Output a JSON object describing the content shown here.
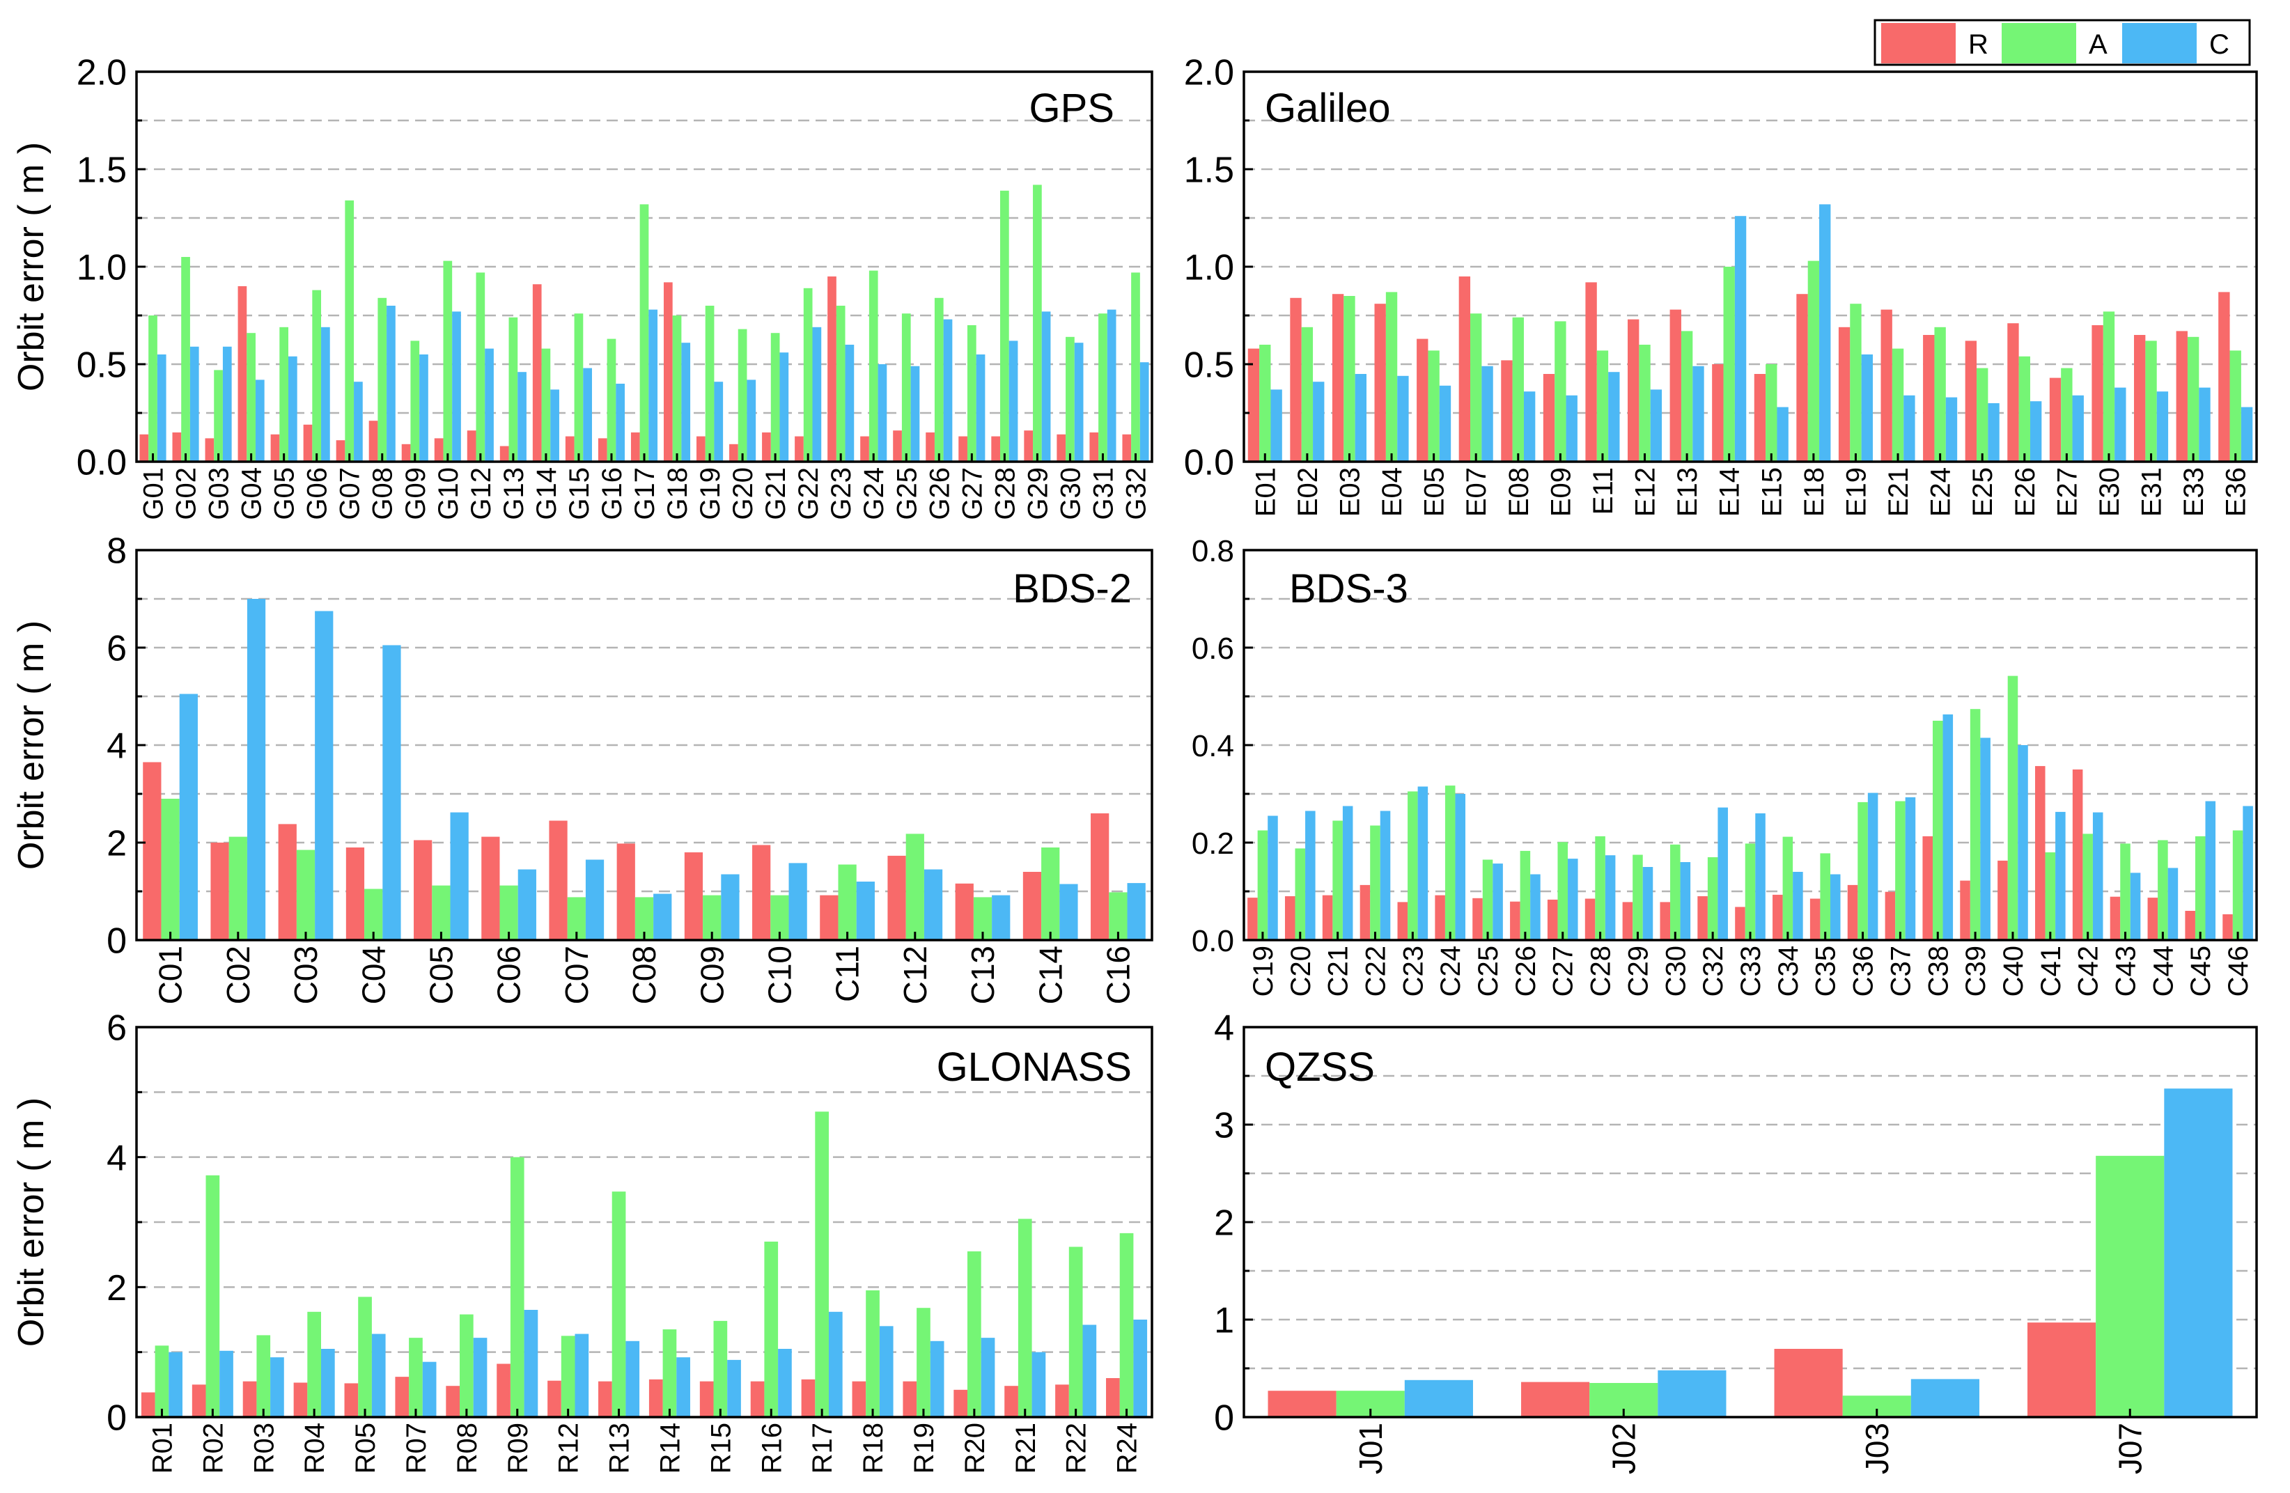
{
  "figure": {
    "ylabel": "Orbit error ( m )",
    "legend": {
      "position": "top-right",
      "entries": [
        "R",
        "A",
        "C"
      ]
    },
    "colors": {
      "R": "#F86A6A",
      "A": "#75F575",
      "C": "#4CB8F5"
    }
  },
  "chart_data": [
    {
      "type": "bar",
      "title": "GPS",
      "ylabel": "Orbit error ( m )",
      "ylim": [
        0,
        2.0
      ],
      "yticks": [
        "0.0",
        "0.5",
        "1.0",
        "1.5",
        "2.0"
      ],
      "grid": true,
      "categories": [
        "G01",
        "G02",
        "G03",
        "G04",
        "G05",
        "G06",
        "G07",
        "G08",
        "G09",
        "G10",
        "G12",
        "G13",
        "G14",
        "G15",
        "G16",
        "G17",
        "G18",
        "G19",
        "G20",
        "G21",
        "G22",
        "G23",
        "G24",
        "G25",
        "G26",
        "G27",
        "G28",
        "G29",
        "G30",
        "G31",
        "G32"
      ],
      "series": [
        {
          "name": "R",
          "values": [
            0.14,
            0.15,
            0.12,
            0.9,
            0.14,
            0.19,
            0.11,
            0.21,
            0.09,
            0.12,
            0.16,
            0.08,
            0.91,
            0.13,
            0.12,
            0.15,
            0.92,
            0.13,
            0.09,
            0.15,
            0.13,
            0.95,
            0.13,
            0.16,
            0.15,
            0.13,
            0.13,
            0.16,
            0.14,
            0.15,
            0.14
          ]
        },
        {
          "name": "A",
          "values": [
            0.75,
            1.05,
            0.47,
            0.66,
            0.69,
            0.88,
            1.34,
            0.84,
            0.62,
            1.03,
            0.97,
            0.74,
            0.58,
            0.76,
            0.63,
            1.32,
            0.75,
            0.8,
            0.68,
            0.66,
            0.89,
            0.8,
            0.98,
            0.76,
            0.84,
            0.7,
            1.39,
            1.42,
            0.64,
            0.76,
            0.97
          ]
        },
        {
          "name": "C",
          "values": [
            0.55,
            0.59,
            0.59,
            0.42,
            0.54,
            0.69,
            0.41,
            0.8,
            0.55,
            0.77,
            0.58,
            0.46,
            0.37,
            0.48,
            0.4,
            0.78,
            0.61,
            0.41,
            0.42,
            0.56,
            0.69,
            0.6,
            0.5,
            0.49,
            0.73,
            0.55,
            0.62,
            0.77,
            0.61,
            0.78,
            0.51
          ]
        }
      ]
    },
    {
      "type": "bar",
      "title": "Galileo",
      "ylabel": "",
      "ylim": [
        0,
        2.0
      ],
      "yticks": [
        "0.0",
        "0.5",
        "1.0",
        "1.5",
        "2.0"
      ],
      "grid": true,
      "categories": [
        "E01",
        "E02",
        "E03",
        "E04",
        "E05",
        "E07",
        "E08",
        "E09",
        "E11",
        "E12",
        "E13",
        "E14",
        "E15",
        "E18",
        "E19",
        "E21",
        "E24",
        "E25",
        "E26",
        "E27",
        "E30",
        "E31",
        "E33",
        "E36"
      ],
      "series": [
        {
          "name": "R",
          "values": [
            0.58,
            0.84,
            0.86,
            0.81,
            0.63,
            0.95,
            0.52,
            0.45,
            0.92,
            0.73,
            0.78,
            0.5,
            0.45,
            0.86,
            0.69,
            0.78,
            0.65,
            0.62,
            0.71,
            0.43,
            0.7,
            0.65,
            0.67,
            0.87
          ]
        },
        {
          "name": "A",
          "values": [
            0.6,
            0.69,
            0.85,
            0.87,
            0.57,
            0.76,
            0.74,
            0.72,
            0.57,
            0.6,
            0.67,
            1.0,
            0.5,
            1.03,
            0.81,
            0.58,
            0.69,
            0.48,
            0.54,
            0.48,
            0.77,
            0.62,
            0.64,
            0.57
          ]
        },
        {
          "name": "C",
          "values": [
            0.37,
            0.41,
            0.45,
            0.44,
            0.39,
            0.49,
            0.36,
            0.34,
            0.46,
            0.37,
            0.49,
            1.26,
            0.28,
            1.32,
            0.55,
            0.34,
            0.33,
            0.3,
            0.31,
            0.34,
            0.38,
            0.36,
            0.38,
            0.28
          ]
        }
      ]
    },
    {
      "type": "bar",
      "title": "BDS-2",
      "ylabel": "Orbit error ( m )",
      "ylim": [
        0,
        8
      ],
      "yticks": [
        "0",
        "2",
        "4",
        "6",
        "8"
      ],
      "grid": true,
      "categories": [
        "C01",
        "C02",
        "C03",
        "C04",
        "C05",
        "C06",
        "C07",
        "C08",
        "C09",
        "C10",
        "C11",
        "C12",
        "C13",
        "C14",
        "C16"
      ],
      "series": [
        {
          "name": "R",
          "values": [
            3.65,
            2.0,
            2.38,
            1.9,
            2.05,
            2.12,
            2.45,
            1.98,
            1.8,
            1.95,
            0.92,
            1.73,
            1.16,
            1.4,
            2.6
          ]
        },
        {
          "name": "A",
          "values": [
            2.9,
            2.12,
            1.85,
            1.05,
            1.12,
            1.12,
            0.88,
            0.88,
            0.92,
            0.92,
            1.55,
            2.18,
            0.88,
            1.9,
            0.98
          ]
        },
        {
          "name": "C",
          "values": [
            5.05,
            7.0,
            6.75,
            6.05,
            2.62,
            1.45,
            1.65,
            0.95,
            1.35,
            1.58,
            1.2,
            1.45,
            0.92,
            1.15,
            1.17
          ]
        }
      ]
    },
    {
      "type": "bar",
      "title": "BDS-3",
      "ylabel": "",
      "ylim": [
        0,
        0.8
      ],
      "yticks": [
        "0.0",
        "0.2",
        "0.4",
        "0.6",
        "0.8"
      ],
      "grid": true,
      "categories": [
        "C19",
        "C20",
        "C21",
        "C22",
        "C23",
        "C24",
        "C25",
        "C26",
        "C27",
        "C28",
        "C29",
        "C30",
        "C32",
        "C33",
        "C34",
        "C35",
        "C36",
        "C37",
        "C38",
        "C39",
        "C40",
        "C41",
        "C42",
        "C43",
        "C44",
        "C45",
        "C46"
      ],
      "series": [
        {
          "name": "R",
          "values": [
            0.087,
            0.09,
            0.092,
            0.113,
            0.078,
            0.092,
            0.086,
            0.079,
            0.083,
            0.085,
            0.078,
            0.078,
            0.09,
            0.068,
            0.093,
            0.085,
            0.113,
            0.099,
            0.213,
            0.122,
            0.163,
            0.357,
            0.35,
            0.089,
            0.087,
            0.06,
            0.053
          ]
        },
        {
          "name": "A",
          "values": [
            0.225,
            0.188,
            0.245,
            0.235,
            0.305,
            0.317,
            0.165,
            0.183,
            0.201,
            0.213,
            0.175,
            0.196,
            0.17,
            0.198,
            0.212,
            0.178,
            0.283,
            0.285,
            0.45,
            0.474,
            0.542,
            0.18,
            0.218,
            0.198,
            0.205,
            0.213,
            0.225
          ]
        },
        {
          "name": "C",
          "values": [
            0.255,
            0.265,
            0.275,
            0.265,
            0.315,
            0.3,
            0.157,
            0.135,
            0.167,
            0.174,
            0.15,
            0.16,
            0.272,
            0.26,
            0.14,
            0.135,
            0.302,
            0.293,
            0.463,
            0.415,
            0.4,
            0.263,
            0.262,
            0.138,
            0.148,
            0.285,
            0.275
          ]
        }
      ]
    },
    {
      "type": "bar",
      "title": "GLONASS",
      "ylabel": "Orbit error ( m )",
      "ylim": [
        0,
        6
      ],
      "yticks": [
        "0",
        "2",
        "4",
        "6"
      ],
      "grid": true,
      "categories": [
        "R01",
        "R02",
        "R03",
        "R04",
        "R05",
        "R07",
        "R08",
        "R09",
        "R12",
        "R13",
        "R14",
        "R15",
        "R16",
        "R17",
        "R18",
        "R19",
        "R20",
        "R21",
        "R22",
        "R24"
      ],
      "series": [
        {
          "name": "R",
          "values": [
            0.38,
            0.5,
            0.55,
            0.53,
            0.52,
            0.62,
            0.48,
            0.82,
            0.56,
            0.55,
            0.58,
            0.55,
            0.55,
            0.58,
            0.55,
            0.55,
            0.42,
            0.48,
            0.5,
            0.6
          ]
        },
        {
          "name": "A",
          "values": [
            1.1,
            3.72,
            1.26,
            1.62,
            1.85,
            1.22,
            1.58,
            4.0,
            1.25,
            3.47,
            1.35,
            1.48,
            2.7,
            4.7,
            1.95,
            1.68,
            2.55,
            3.05,
            2.62,
            2.83
          ]
        },
        {
          "name": "C",
          "values": [
            1.0,
            1.02,
            0.92,
            1.05,
            1.28,
            0.85,
            1.22,
            1.65,
            1.28,
            1.17,
            0.92,
            0.88,
            1.05,
            1.62,
            1.4,
            1.17,
            1.22,
            1.0,
            1.42,
            1.5
          ]
        }
      ]
    },
    {
      "type": "bar",
      "title": "QZSS",
      "ylabel": "",
      "ylim": [
        0,
        4
      ],
      "yticks": [
        "0",
        "1",
        "2",
        "3",
        "4"
      ],
      "grid": true,
      "categories": [
        "J01",
        "J02",
        "J03",
        "J07"
      ],
      "series": [
        {
          "name": "R",
          "values": [
            0.27,
            0.36,
            0.7,
            0.97
          ]
        },
        {
          "name": "A",
          "values": [
            0.27,
            0.35,
            0.22,
            2.68
          ]
        },
        {
          "name": "C",
          "values": [
            0.38,
            0.48,
            0.39,
            3.37
          ]
        }
      ]
    }
  ]
}
